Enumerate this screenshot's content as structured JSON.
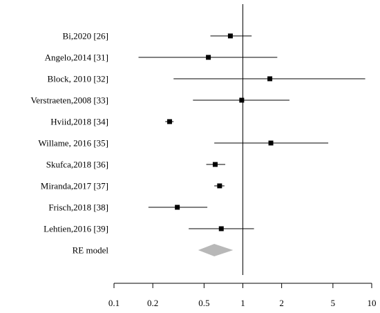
{
  "chart_data": {
    "type": "forest",
    "title": "",
    "xlabel": "",
    "ylabel": "",
    "x_scale": "log",
    "xlim": [
      0.1,
      10
    ],
    "reference_line": 1,
    "x_ticks": [
      {
        "value": 0.1,
        "label": "0.1"
      },
      {
        "value": 0.2,
        "label": "0.2"
      },
      {
        "value": 0.5,
        "label": "0.5"
      },
      {
        "value": 1,
        "label": "1"
      },
      {
        "value": 2,
        "label": "2"
      },
      {
        "value": 5,
        "label": "5"
      },
      {
        "value": 10,
        "label": "10"
      }
    ],
    "studies": [
      {
        "label": "Bi,2020 [26]",
        "estimate": 0.8,
        "lower": 0.56,
        "upper": 1.17
      },
      {
        "label": "Angelo,2014 [31]",
        "estimate": 0.54,
        "lower": 0.155,
        "upper": 1.85
      },
      {
        "label": "Block, 2010 [32]",
        "estimate": 1.62,
        "lower": 0.29,
        "upper": 8.9
      },
      {
        "label": "Verstraeten,2008 [33]",
        "estimate": 0.98,
        "lower": 0.41,
        "upper": 2.3
      },
      {
        "label": "Hviid,2018 [34]",
        "estimate": 0.27,
        "lower": 0.25,
        "upper": 0.29
      },
      {
        "label": "Willame, 2016 [35]",
        "estimate": 1.65,
        "lower": 0.6,
        "upper": 4.6
      },
      {
        "label": "Skufca,2018 [36]",
        "estimate": 0.61,
        "lower": 0.52,
        "upper": 0.73
      },
      {
        "label": "Miranda,2017 [37]",
        "estimate": 0.66,
        "lower": 0.6,
        "upper": 0.72
      },
      {
        "label": "Frisch,2018 [38]",
        "estimate": 0.31,
        "lower": 0.185,
        "upper": 0.53
      },
      {
        "label": "Lehtien,2016 [39]",
        "estimate": 0.68,
        "lower": 0.38,
        "upper": 1.22
      }
    ],
    "summary": {
      "label": "RE model",
      "estimate": 0.6,
      "lower": 0.45,
      "upper": 0.84
    },
    "colors": {
      "point": "#000000",
      "line": "#000000",
      "summary": "#b8b8b8"
    }
  }
}
